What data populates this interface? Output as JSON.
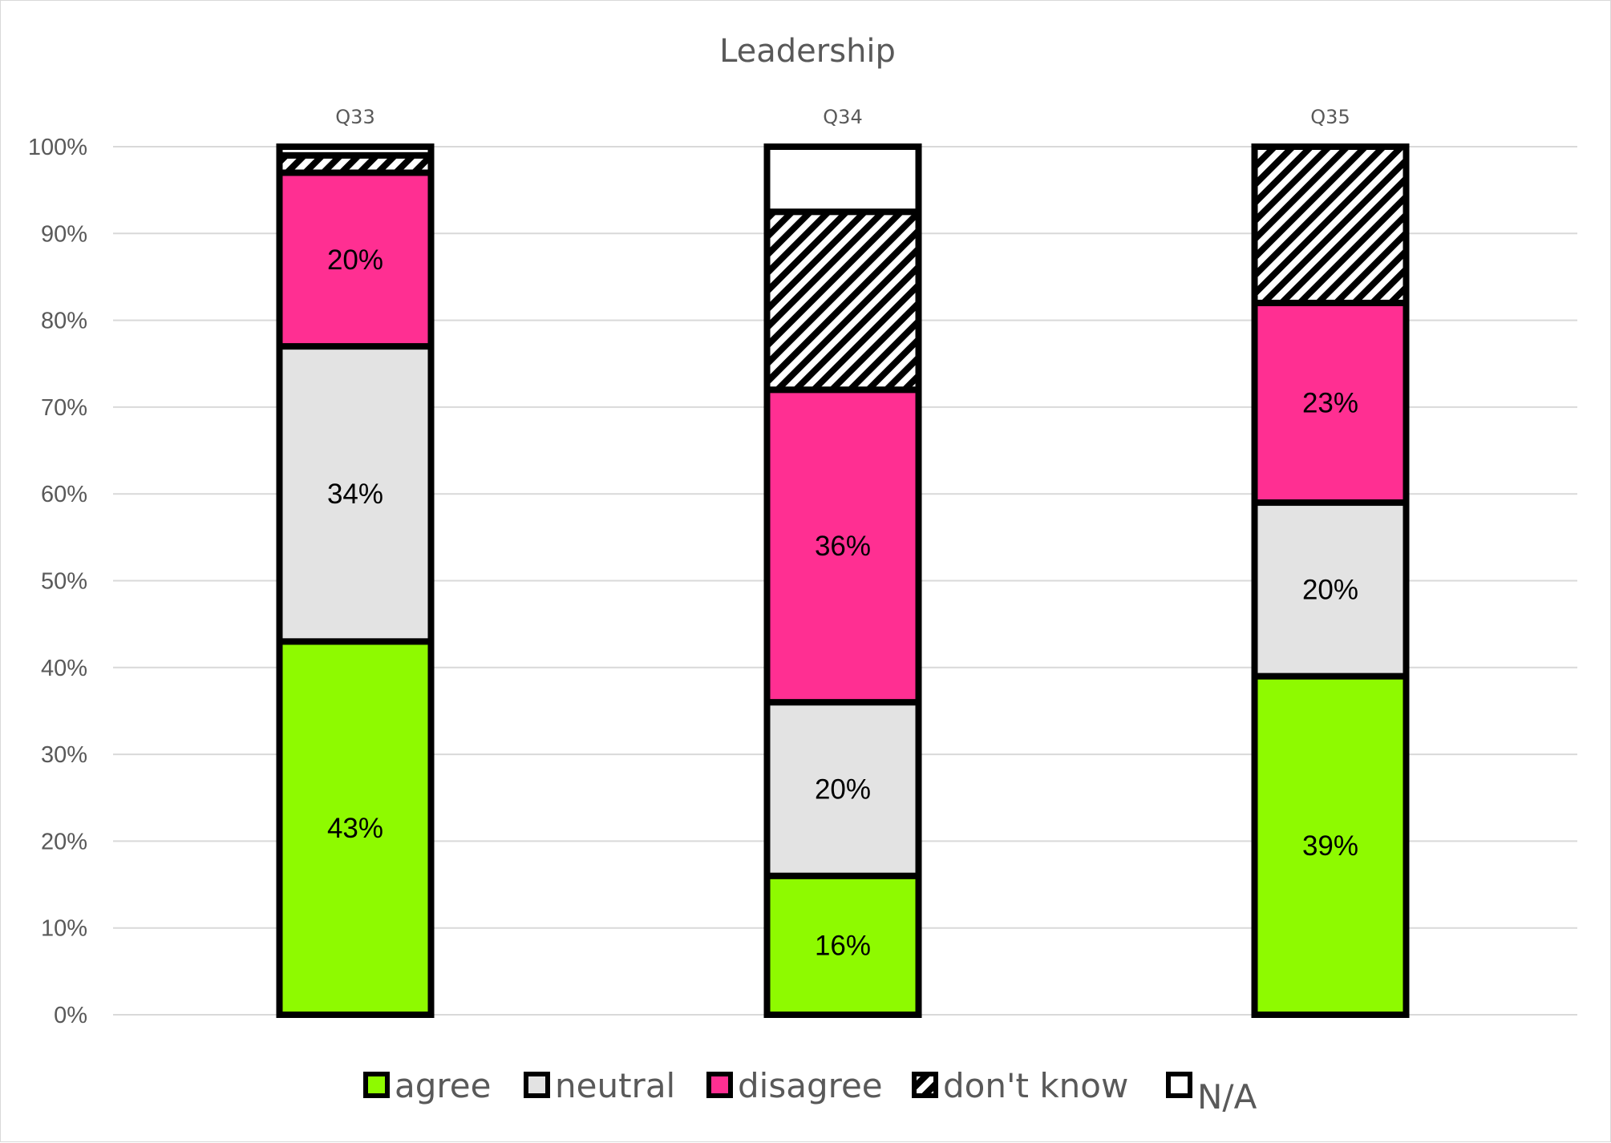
{
  "chart_data": {
    "type": "bar",
    "stacked": true,
    "title": "Leadership",
    "categories": [
      "Q33",
      "Q34",
      "Q35"
    ],
    "ylim": [
      0,
      100
    ],
    "yticks": [
      "0%",
      "10%",
      "20%",
      "30%",
      "40%",
      "50%",
      "60%",
      "70%",
      "80%",
      "90%",
      "100%"
    ],
    "grid": true,
    "legend_position": "bottom",
    "series": [
      {
        "name": "agree",
        "values": [
          43,
          16,
          39
        ],
        "labels": [
          "43%",
          "16%",
          "39%"
        ],
        "color": "#8EFA00",
        "pattern": "solid"
      },
      {
        "name": "neutral",
        "values": [
          34,
          20,
          20
        ],
        "labels": [
          "34%",
          "20%",
          "20%"
        ],
        "color": "#E3E3E3",
        "pattern": "solid"
      },
      {
        "name": "disagree",
        "values": [
          20,
          36,
          23
        ],
        "labels": [
          "20%",
          "36%",
          "23%"
        ],
        "color": "#FF2F92",
        "pattern": "solid"
      },
      {
        "name": "don't know",
        "values": [
          2,
          20.5,
          18
        ],
        "labels": [
          "",
          "",
          ""
        ],
        "color": "#FFFFFF",
        "pattern": "diagonal-stripes"
      },
      {
        "name": "N/A",
        "values": [
          1,
          7.5,
          0
        ],
        "labels": [
          "",
          "",
          ""
        ],
        "color": "#FFFFFF",
        "pattern": "solid"
      }
    ]
  }
}
